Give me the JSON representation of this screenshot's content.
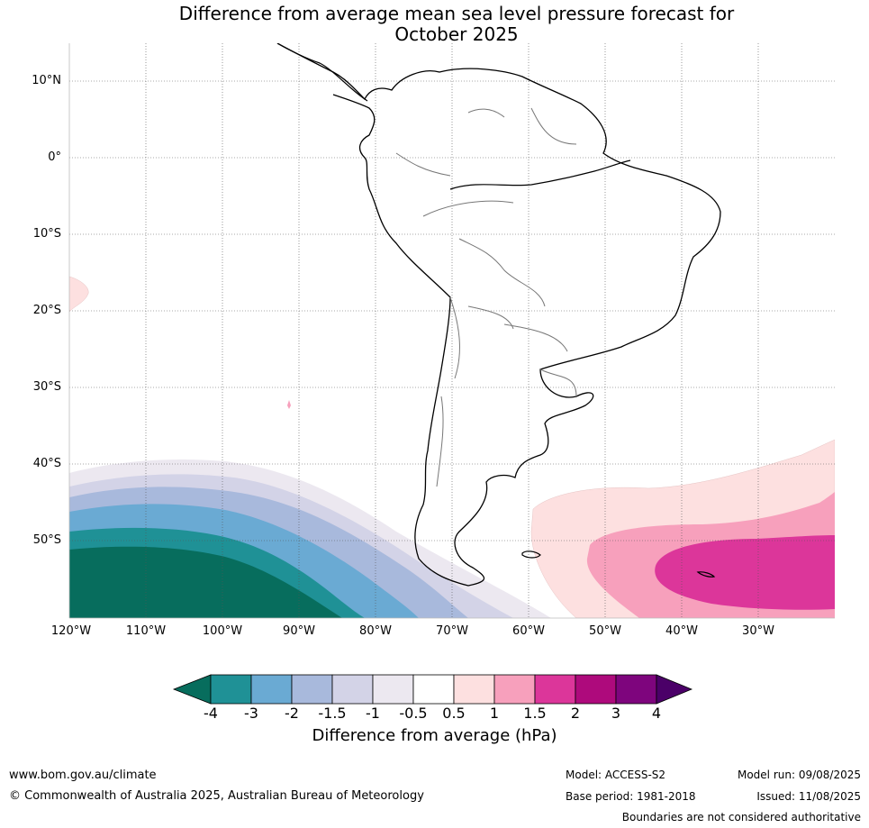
{
  "title_line1": "Difference from average mean sea level pressure forecast for",
  "title_line2": "October 2025",
  "lat_labels": [
    "10°N",
    "0°",
    "10°S",
    "20°S",
    "30°S",
    "40°S",
    "50°S"
  ],
  "lon_labels": [
    "120°W",
    "110°W",
    "100°W",
    "90°W",
    "80°W",
    "70°W",
    "60°W",
    "50°W",
    "40°W",
    "30°W"
  ],
  "colorbar": {
    "ticks": [
      "-4",
      "-3",
      "-2",
      "-1.5",
      "-1",
      "-0.5",
      "0.5",
      "1",
      "1.5",
      "2",
      "3",
      "4"
    ],
    "colors": [
      "#076d5d",
      "#1f9196",
      "#6aaad3",
      "#a8b9dc",
      "#d3d3e7",
      "#ece8f0",
      "#ffffff",
      "#fde0e0",
      "#f7a0bc",
      "#dc369a",
      "#ae0a7c",
      "#7e057d",
      "#4b0068"
    ],
    "label": "Difference from average (hPa)"
  },
  "footer": {
    "website": "www.bom.gov.au/climate",
    "copyright": "© Commonwealth of Australia 2025, Australian Bureau of Meteorology",
    "model": "Model: ACCESS-S2",
    "base_period": "Base period: 1981-2018",
    "model_run": "Model run: 09/08/2025",
    "issued": "Issued: 11/08/2025",
    "disclaimer": "Boundaries are not considered authoritative"
  }
}
